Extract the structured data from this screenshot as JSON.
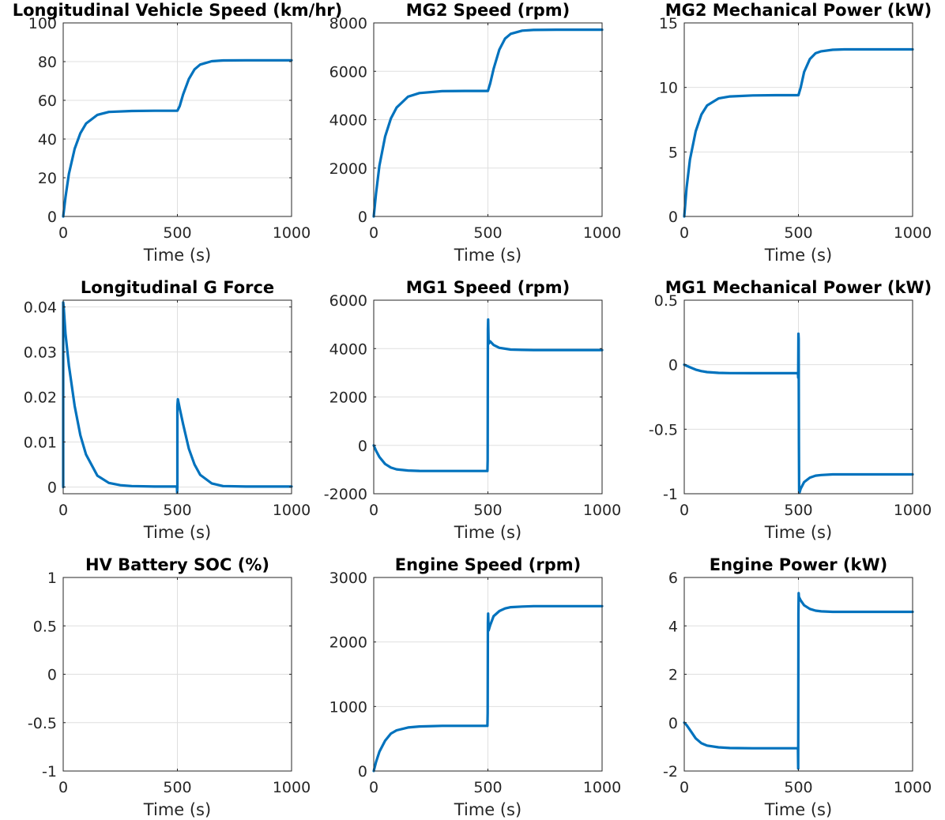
{
  "figure": {
    "colors": {
      "line": "#0072bd"
    }
  },
  "chart_data": [
    {
      "type": "line",
      "title": "Longitudinal Vehicle Speed (km/hr)",
      "xlabel": "Time (s)",
      "ylabel": "",
      "xlim": [
        0,
        1000
      ],
      "ylim": [
        0,
        100
      ],
      "grid": true,
      "xticks": [
        0,
        500,
        1000
      ],
      "xticklabels": [
        "0",
        "500",
        "1000"
      ],
      "yticks": [
        0,
        20,
        40,
        60,
        80,
        100
      ],
      "yticklabels": [
        "0",
        "20",
        "40",
        "60",
        "80",
        "100"
      ],
      "series": [
        {
          "x": [
            0,
            10,
            25,
            50,
            75,
            100,
            150,
            200,
            300,
            400,
            498,
            500,
            510,
            525,
            550,
            575,
            600,
            650,
            700,
            800,
            1000
          ],
          "y": [
            0,
            10,
            22,
            35,
            43,
            48,
            52.5,
            54,
            54.5,
            54.6,
            54.6,
            54.6,
            57,
            63,
            71,
            76,
            78.5,
            80.2,
            80.6,
            80.7,
            80.7
          ]
        }
      ]
    },
    {
      "type": "line",
      "title": "MG2 Speed (rpm)",
      "xlabel": "Time (s)",
      "ylabel": "",
      "xlim": [
        0,
        1000
      ],
      "ylim": [
        0,
        8000
      ],
      "grid": true,
      "xticks": [
        0,
        500,
        1000
      ],
      "xticklabels": [
        "0",
        "500",
        "1000"
      ],
      "yticks": [
        0,
        2000,
        4000,
        6000,
        8000
      ],
      "yticklabels": [
        "0",
        "2000",
        "4000",
        "6000",
        "8000"
      ],
      "series": [
        {
          "x": [
            0,
            10,
            25,
            50,
            75,
            100,
            150,
            200,
            300,
            400,
            498,
            500,
            510,
            525,
            550,
            575,
            600,
            650,
            700,
            800,
            1000
          ],
          "y": [
            0,
            950,
            2100,
            3300,
            4050,
            4500,
            4950,
            5100,
            5180,
            5190,
            5190,
            5190,
            5500,
            6100,
            6900,
            7350,
            7550,
            7680,
            7710,
            7720,
            7720
          ]
        }
      ]
    },
    {
      "type": "line",
      "title": "MG2 Mechanical Power (kW)",
      "xlabel": "Time (s)",
      "ylabel": "",
      "xlim": [
        0,
        1000
      ],
      "ylim": [
        0,
        15
      ],
      "grid": true,
      "xticks": [
        0,
        500,
        1000
      ],
      "xticklabels": [
        "0",
        "500",
        "1000"
      ],
      "yticks": [
        0,
        5,
        10,
        15
      ],
      "yticklabels": [
        "0",
        "5",
        "10",
        "15"
      ],
      "series": [
        {
          "x": [
            0,
            10,
            25,
            50,
            75,
            100,
            150,
            200,
            300,
            400,
            498,
            500,
            510,
            525,
            550,
            575,
            600,
            650,
            700,
            800,
            1000
          ],
          "y": [
            0,
            2.2,
            4.4,
            6.6,
            7.9,
            8.6,
            9.15,
            9.3,
            9.38,
            9.4,
            9.4,
            9.4,
            10.0,
            11.2,
            12.2,
            12.65,
            12.8,
            12.92,
            12.95,
            12.95,
            12.95
          ]
        }
      ]
    },
    {
      "type": "line",
      "title": "Longitudinal G Force",
      "xlabel": "Time (s)",
      "ylabel": "",
      "xlim": [
        0,
        1000
      ],
      "ylim": [
        -0.0015,
        0.0415
      ],
      "grid": true,
      "xticks": [
        0,
        500,
        1000
      ],
      "xticklabels": [
        "0",
        "500",
        "1000"
      ],
      "yticks": [
        0,
        0.01,
        0.02,
        0.03,
        0.04
      ],
      "yticklabels": [
        "0",
        "0.01",
        "0.02",
        "0.03",
        "0.04"
      ],
      "series": [
        {
          "x": [
            0,
            0,
            2,
            10,
            25,
            50,
            75,
            100,
            150,
            200,
            250,
            300,
            400,
            498,
            499,
            500,
            500,
            502,
            510,
            525,
            550,
            575,
            600,
            650,
            700,
            800,
            1000
          ],
          "y": [
            0,
            0.041,
            0.04,
            0.034,
            0.027,
            0.018,
            0.0115,
            0.0072,
            0.0025,
            0.0009,
            0.0004,
            0.0002,
            0.0001,
            0.0001,
            -0.0012,
            0.0,
            0.018,
            0.0195,
            0.0175,
            0.014,
            0.0085,
            0.005,
            0.0027,
            0.0008,
            0.0002,
            0.0001,
            0.0001
          ]
        }
      ]
    },
    {
      "type": "line",
      "title": "MG1 Speed (rpm)",
      "xlabel": "Time (s)",
      "ylabel": "",
      "xlim": [
        0,
        1000
      ],
      "ylim": [
        -2000,
        6000
      ],
      "grid": true,
      "xticks": [
        0,
        500,
        1000
      ],
      "xticklabels": [
        "0",
        "500",
        "1000"
      ],
      "yticks": [
        -2000,
        0,
        2000,
        4000,
        6000
      ],
      "yticklabels": [
        "-2000",
        "0",
        "2000",
        "4000",
        "6000"
      ],
      "series": [
        {
          "x": [
            0,
            10,
            25,
            50,
            75,
            100,
            150,
            200,
            300,
            400,
            498,
            499,
            500,
            501,
            503,
            510,
            525,
            550,
            600,
            650,
            700,
            1000
          ],
          "y": [
            0,
            -220,
            -480,
            -770,
            -920,
            -990,
            -1040,
            -1055,
            -1060,
            -1060,
            -1060,
            -600,
            4800,
            5200,
            4200,
            4300,
            4150,
            4030,
            3960,
            3945,
            3940,
            3940
          ]
        }
      ]
    },
    {
      "type": "line",
      "title": "MG1 Mechanical Power (kW)",
      "xlabel": "Time (s)",
      "ylabel": "",
      "xlim": [
        0,
        1000
      ],
      "ylim": [
        -1,
        0.5
      ],
      "grid": true,
      "xticks": [
        0,
        500,
        1000
      ],
      "xticklabels": [
        "0",
        "500",
        "1000"
      ],
      "yticks": [
        -1,
        -0.5,
        0,
        0.5
      ],
      "yticklabels": [
        "-1",
        "-0.5",
        "0",
        "0.5"
      ],
      "series": [
        {
          "x": [
            0,
            10,
            25,
            50,
            75,
            100,
            150,
            200,
            300,
            400,
            498,
            499,
            500,
            501,
            502,
            503,
            505,
            510,
            525,
            550,
            575,
            600,
            650,
            700,
            1000
          ],
          "y": [
            0,
            -0.008,
            -0.02,
            -0.038,
            -0.05,
            -0.057,
            -0.063,
            -0.065,
            -0.066,
            -0.066,
            -0.066,
            -0.1,
            0.24,
            0.2,
            -0.6,
            -0.99,
            -0.99,
            -0.96,
            -0.91,
            -0.875,
            -0.86,
            -0.855,
            -0.85,
            -0.85,
            -0.85
          ]
        }
      ]
    },
    {
      "type": "line",
      "title": "HV Battery SOC (%)",
      "xlabel": "Time (s)",
      "ylabel": "",
      "xlim": [
        0,
        1000
      ],
      "ylim": [
        -1,
        1
      ],
      "grid": true,
      "xticks": [
        0,
        500,
        1000
      ],
      "xticklabels": [
        "0",
        "500",
        "1000"
      ],
      "yticks": [
        -1,
        -0.5,
        0,
        0.5,
        1
      ],
      "yticklabels": [
        "-1",
        "-0.5",
        "0",
        "0.5",
        "1"
      ],
      "series": [
        {
          "x": [],
          "y": []
        }
      ]
    },
    {
      "type": "line",
      "title": "Engine Speed (rpm)",
      "xlabel": "Time (s)",
      "ylabel": "",
      "xlim": [
        0,
        1000
      ],
      "ylim": [
        0,
        3000
      ],
      "grid": true,
      "xticks": [
        0,
        500,
        1000
      ],
      "xticklabels": [
        "0",
        "500",
        "1000"
      ],
      "yticks": [
        0,
        1000,
        2000,
        3000
      ],
      "yticklabels": [
        "0",
        "1000",
        "2000",
        "3000"
      ],
      "series": [
        {
          "x": [
            0,
            10,
            25,
            50,
            75,
            100,
            150,
            200,
            300,
            400,
            498,
            499,
            500,
            501,
            503,
            510,
            525,
            550,
            575,
            600,
            650,
            700,
            1000
          ],
          "y": [
            0,
            140,
            300,
            470,
            580,
            630,
            675,
            690,
            700,
            700,
            700,
            900,
            2300,
            2440,
            2180,
            2260,
            2400,
            2480,
            2520,
            2540,
            2550,
            2555,
            2555
          ]
        }
      ]
    },
    {
      "type": "line",
      "title": "Engine Power (kW)",
      "xlabel": "Time (s)",
      "ylabel": "",
      "xlim": [
        0,
        1000
      ],
      "ylim": [
        -2,
        6
      ],
      "grid": true,
      "xticks": [
        0,
        500,
        1000
      ],
      "xticklabels": [
        "0",
        "500",
        "1000"
      ],
      "yticks": [
        -2,
        0,
        2,
        4,
        6
      ],
      "yticklabels": [
        "-2",
        "0",
        "2",
        "4",
        "6"
      ],
      "series": [
        {
          "x": [
            0,
            10,
            25,
            50,
            75,
            100,
            150,
            200,
            300,
            400,
            498,
            499,
            500,
            501,
            502,
            510,
            525,
            550,
            575,
            600,
            650,
            700,
            1000
          ],
          "y": [
            0,
            -0.1,
            -0.3,
            -0.65,
            -0.85,
            -0.95,
            -1.02,
            -1.05,
            -1.06,
            -1.06,
            -1.06,
            -1.9,
            4.5,
            5.35,
            5.2,
            5.05,
            4.85,
            4.7,
            4.63,
            4.6,
            4.58,
            4.58,
            4.58
          ]
        }
      ]
    }
  ]
}
